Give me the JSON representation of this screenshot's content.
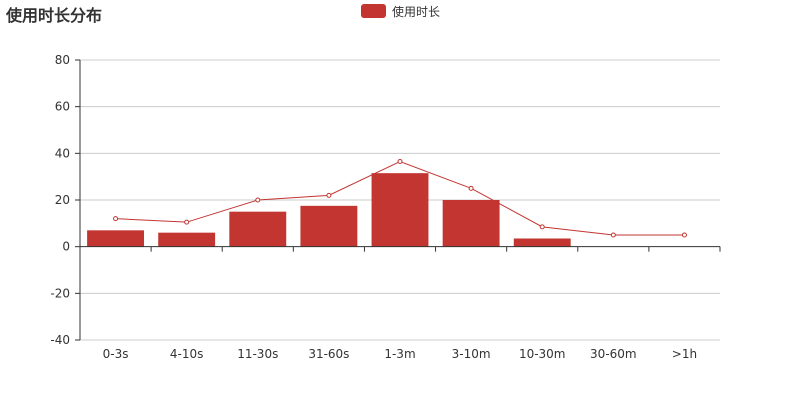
{
  "chart_data": {
    "type": "bar",
    "title": "使用时长分布",
    "categories": [
      "0-3s",
      "4-10s",
      "11-30s",
      "31-60s",
      "1-3m",
      "3-10m",
      "10-30m",
      "30-60m",
      ">1h"
    ],
    "series": [
      {
        "name": "使用时长",
        "type": "bar",
        "values": [
          7,
          6,
          15,
          17.5,
          31.5,
          20,
          3.5,
          0,
          0
        ]
      },
      {
        "type": "line",
        "values": [
          12,
          10.5,
          20,
          22,
          36.5,
          25,
          8.5,
          5,
          5
        ]
      }
    ],
    "ylim": [
      -40,
      80
    ],
    "yticks": [
      80,
      60,
      40,
      20,
      0,
      -20,
      -40
    ],
    "grid": true,
    "legend": "top-center",
    "colors": {
      "series": "#c23531",
      "grid": "#cccccc",
      "axis": "#333333",
      "text": "#333333"
    }
  }
}
